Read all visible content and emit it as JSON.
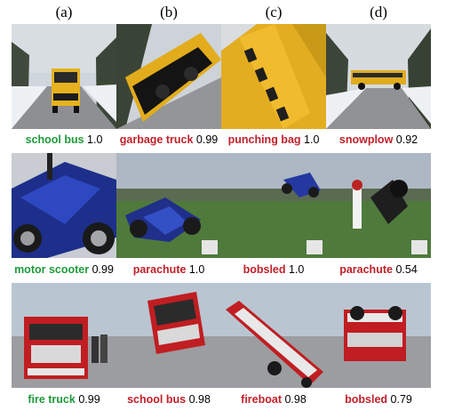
{
  "columns": [
    "(a)",
    "(b)",
    "(c)",
    "(d)"
  ],
  "rows": [
    {
      "scene": "school-bus",
      "cells": [
        {
          "label": "school bus",
          "score": "1.0",
          "correct": true
        },
        {
          "label": "garbage truck",
          "score": "0.99",
          "correct": false
        },
        {
          "label": "punching bag",
          "score": "1.0",
          "correct": false
        },
        {
          "label": "snowplow",
          "score": "0.92",
          "correct": false
        }
      ]
    },
    {
      "scene": "motor-scooter",
      "cells": [
        {
          "label": "motor scooter",
          "score": "0.99",
          "correct": true
        },
        {
          "label": "parachute",
          "score": "1.0",
          "correct": false
        },
        {
          "label": "bobsled",
          "score": "1.0",
          "correct": false
        },
        {
          "label": "parachute",
          "score": "0.54",
          "correct": false
        }
      ]
    },
    {
      "scene": "fire-truck",
      "cells": [
        {
          "label": "fire truck",
          "score": "0.99",
          "correct": true
        },
        {
          "label": "school bus",
          "score": "0.98",
          "correct": false
        },
        {
          "label": "fireboat",
          "score": "0.98",
          "correct": false
        },
        {
          "label": "bobsled",
          "score": "0.79",
          "correct": false
        }
      ]
    }
  ],
  "colors": {
    "correct": "#1f9a3a",
    "incorrect": "#c0202a"
  }
}
